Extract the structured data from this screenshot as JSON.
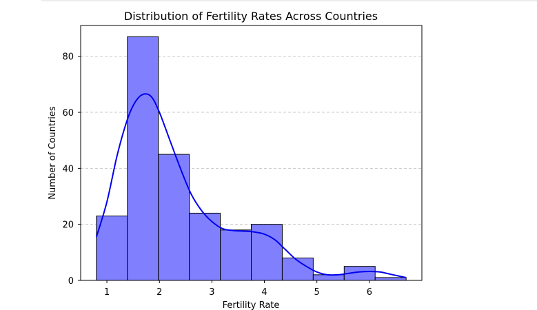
{
  "chart_data": {
    "type": "bar",
    "title": "Distribution of Fertility Rates Across Countries",
    "xlabel": "Fertility Rate",
    "ylabel": "Number of Countries",
    "xlim": [
      0.5,
      7.0
    ],
    "ylim": [
      0,
      91
    ],
    "x_ticks": [
      1,
      2,
      3,
      4,
      5,
      6
    ],
    "y_ticks": [
      0,
      20,
      40,
      60,
      80
    ],
    "grid": "y-dashed",
    "bins": [
      {
        "x0": 0.8,
        "x1": 1.39,
        "count": 23
      },
      {
        "x0": 1.39,
        "x1": 1.98,
        "count": 87
      },
      {
        "x0": 1.98,
        "x1": 2.57,
        "count": 45
      },
      {
        "x0": 2.57,
        "x1": 3.16,
        "count": 24
      },
      {
        "x0": 3.16,
        "x1": 3.75,
        "count": 18
      },
      {
        "x0": 3.75,
        "x1": 4.34,
        "count": 20
      },
      {
        "x0": 4.34,
        "x1": 4.93,
        "count": 8
      },
      {
        "x0": 4.93,
        "x1": 5.52,
        "count": 2
      },
      {
        "x0": 5.52,
        "x1": 6.11,
        "count": 5
      },
      {
        "x0": 6.11,
        "x1": 6.7,
        "count": 1
      }
    ],
    "kde": {
      "x": [
        0.8,
        1.0,
        1.2,
        1.4,
        1.55,
        1.7,
        1.85,
        2.0,
        2.2,
        2.4,
        2.6,
        2.8,
        3.0,
        3.2,
        3.4,
        3.6,
        3.8,
        4.0,
        4.2,
        4.4,
        4.6,
        4.8,
        5.0,
        5.2,
        5.4,
        5.6,
        5.8,
        6.0,
        6.2,
        6.4,
        6.7
      ],
      "y": [
        15.5,
        28,
        45,
        58,
        64,
        66.5,
        65.5,
        60,
        50,
        40,
        31,
        25,
        21,
        18.5,
        17.8,
        17.6,
        17.3,
        16.5,
        14.5,
        11,
        7.5,
        5,
        3,
        2,
        2,
        2.5,
        3,
        3.2,
        3,
        2.2,
        1
      ]
    },
    "bar_color": "#8080ff",
    "bar_edge_color": "#000000",
    "kde_color": "#0000ee"
  }
}
